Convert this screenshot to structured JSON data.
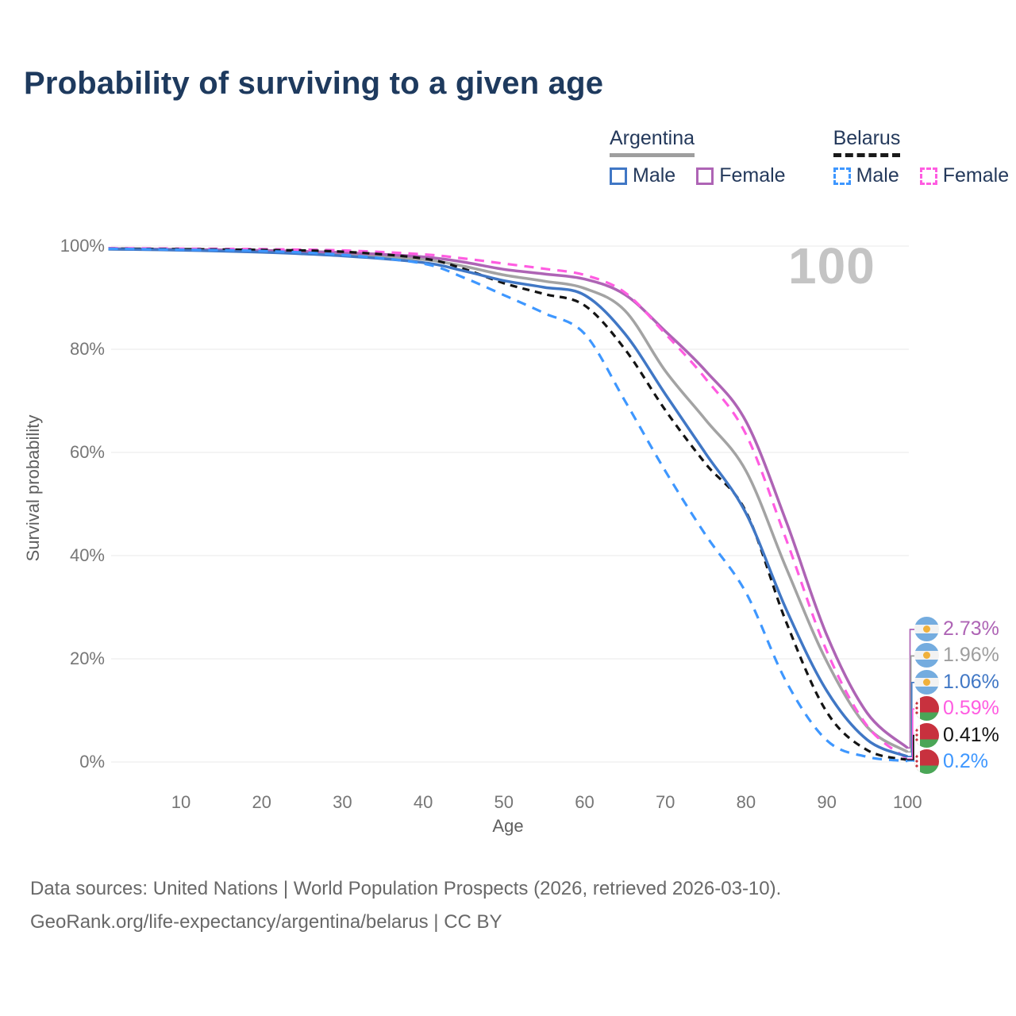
{
  "title": "Probability of surviving to a given age",
  "watermark": "100",
  "legend": {
    "argentina": {
      "header": "Argentina",
      "male": "Male",
      "female": "Female"
    },
    "belarus": {
      "header": "Belarus",
      "male": "Male",
      "female": "Female"
    }
  },
  "footer": {
    "line1": "Data sources: United Nations | World Population Prospects (2026, retrieved 2026-03-10).",
    "line2": "GeoRank.org/life-expectancy/argentina/belarus | CC BY"
  },
  "colors": {
    "title_navy": "#1e3a5e",
    "argentina_male": "#4077c5",
    "argentina_female": "#ae64b5",
    "argentina_total": "#a3a3a3",
    "belarus_male": "#3e97ff",
    "belarus_female": "#ff5ce1",
    "belarus_total": "#141414",
    "grid": "#e9e9e9",
    "tick_text": "#767676"
  },
  "chart_data": {
    "type": "line",
    "title": "Probability of surviving to a given age",
    "xlabel": "Age",
    "ylabel": "Survival probability",
    "xlim": [
      0,
      108
    ],
    "ylim": [
      0,
      100
    ],
    "grid": "horizontal",
    "legend_position": "top-right",
    "x_ticks": [
      10,
      20,
      30,
      40,
      50,
      60,
      70,
      80,
      90,
      100
    ],
    "y_ticks": [
      {
        "label": "0%",
        "value": 0
      },
      {
        "label": "20%",
        "value": 20
      },
      {
        "label": "40%",
        "value": 40
      },
      {
        "label": "60%",
        "value": 60
      },
      {
        "label": "80%",
        "value": 80
      },
      {
        "label": "100%",
        "value": 100
      }
    ],
    "hovered_age": "100",
    "series": [
      {
        "id": "argentina-total",
        "name": "Argentina (total)",
        "color": "#a3a3a3",
        "dash": "solid",
        "points": [
          [
            1,
            99.4
          ],
          [
            10,
            99.25
          ],
          [
            20,
            99.0
          ],
          [
            30,
            98.5
          ],
          [
            40,
            97.4
          ],
          [
            45,
            96.1
          ],
          [
            50,
            94.4
          ],
          [
            55,
            93.2
          ],
          [
            60,
            91.8
          ],
          [
            65,
            87.5
          ],
          [
            70,
            75.8
          ],
          [
            75,
            66.3
          ],
          [
            80,
            56.4
          ],
          [
            85,
            37.5
          ],
          [
            90,
            19.5
          ],
          [
            95,
            6.8
          ],
          [
            100,
            1.96
          ]
        ]
      },
      {
        "id": "argentina-female",
        "name": "Argentina Female",
        "color": "#ae64b5",
        "dash": "solid",
        "points": [
          [
            1,
            99.5
          ],
          [
            10,
            99.35
          ],
          [
            20,
            99.15
          ],
          [
            30,
            98.75
          ],
          [
            40,
            97.9
          ],
          [
            45,
            96.9
          ],
          [
            50,
            95.5
          ],
          [
            55,
            94.6
          ],
          [
            60,
            93.6
          ],
          [
            65,
            90.6
          ],
          [
            70,
            83.5
          ],
          [
            75,
            75.8
          ],
          [
            80,
            66.0
          ],
          [
            85,
            46.5
          ],
          [
            90,
            24.6
          ],
          [
            95,
            9.5
          ],
          [
            100,
            2.73
          ]
        ]
      },
      {
        "id": "belarus-female",
        "name": "Belarus Female",
        "color": "#ff5ce1",
        "dash": "12 9",
        "points": [
          [
            1,
            99.6
          ],
          [
            10,
            99.5
          ],
          [
            20,
            99.4
          ],
          [
            30,
            99.15
          ],
          [
            40,
            98.4
          ],
          [
            45,
            97.6
          ],
          [
            50,
            96.6
          ],
          [
            55,
            95.6
          ],
          [
            60,
            94.4
          ],
          [
            65,
            91.0
          ],
          [
            70,
            83.0
          ],
          [
            75,
            74.3
          ],
          [
            80,
            63.5
          ],
          [
            85,
            43.0
          ],
          [
            90,
            21.5
          ],
          [
            95,
            7.0
          ],
          [
            100,
            0.59
          ]
        ]
      },
      {
        "id": "belarus-total",
        "name": "Belarus (total)",
        "color": "#141414",
        "dash": "9 7",
        "points": [
          [
            1,
            99.5
          ],
          [
            10,
            99.4
          ],
          [
            20,
            99.25
          ],
          [
            30,
            98.9
          ],
          [
            40,
            97.6
          ],
          [
            45,
            95.6
          ],
          [
            50,
            92.8
          ],
          [
            55,
            90.7
          ],
          [
            60,
            88.5
          ],
          [
            65,
            80.0
          ],
          [
            70,
            68.2
          ],
          [
            75,
            57.8
          ],
          [
            80,
            48.5
          ],
          [
            85,
            27.0
          ],
          [
            90,
            9.7
          ],
          [
            95,
            2.3
          ],
          [
            100,
            0.41
          ]
        ]
      },
      {
        "id": "argentina-male",
        "name": "Argentina Male",
        "color": "#4077c5",
        "dash": "solid",
        "points": [
          [
            1,
            99.4
          ],
          [
            10,
            99.2
          ],
          [
            20,
            98.8
          ],
          [
            30,
            98.1
          ],
          [
            40,
            96.8
          ],
          [
            45,
            95.2
          ],
          [
            50,
            93.3
          ],
          [
            55,
            92.0
          ],
          [
            60,
            90.5
          ],
          [
            65,
            83.0
          ],
          [
            70,
            71.3
          ],
          [
            75,
            59.8
          ],
          [
            80,
            48.2
          ],
          [
            85,
            29.5
          ],
          [
            90,
            13.8
          ],
          [
            95,
            4.3
          ],
          [
            100,
            1.06
          ]
        ]
      },
      {
        "id": "belarus-male",
        "name": "Belarus Male",
        "color": "#3e97ff",
        "dash": "12 9",
        "points": [
          [
            1,
            99.5
          ],
          [
            10,
            99.3
          ],
          [
            20,
            99.05
          ],
          [
            30,
            98.3
          ],
          [
            40,
            96.6
          ],
          [
            45,
            93.9
          ],
          [
            50,
            90.5
          ],
          [
            55,
            87.0
          ],
          [
            60,
            83.0
          ],
          [
            65,
            70.0
          ],
          [
            70,
            56.4
          ],
          [
            75,
            44.0
          ],
          [
            80,
            32.8
          ],
          [
            85,
            15.5
          ],
          [
            90,
            4.2
          ],
          [
            95,
            1.0
          ],
          [
            100,
            0.2
          ]
        ]
      }
    ],
    "end_labels": [
      {
        "text": "2.73%",
        "value_pct": 2.73,
        "color": "#ae64b5",
        "flag": "argentina",
        "series": "argentina-female"
      },
      {
        "text": "1.96%",
        "value_pct": 1.96,
        "color": "#9e9e9e",
        "flag": "argentina",
        "series": "argentina-total"
      },
      {
        "text": "1.06%",
        "value_pct": 1.06,
        "color": "#4077c5",
        "flag": "argentina",
        "series": "argentina-male"
      },
      {
        "text": "0.59%",
        "value_pct": 0.59,
        "color": "#ff5ce1",
        "flag": "belarus",
        "series": "belarus-female"
      },
      {
        "text": "0.41%",
        "value_pct": 0.41,
        "color": "#141414",
        "flag": "belarus",
        "series": "belarus-total"
      },
      {
        "text": "0.2%",
        "value_pct": 0.2,
        "color": "#3e97ff",
        "flag": "belarus",
        "series": "belarus-male"
      }
    ]
  }
}
